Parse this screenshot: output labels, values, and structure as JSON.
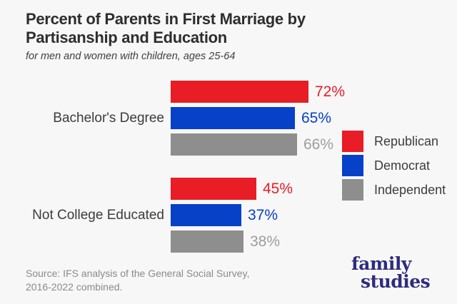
{
  "header": {
    "title_line1": "Percent of Parents in First Marriage by",
    "title_line2": "Partisanship and Education",
    "subtitle": "for men and women with children, ages 25-64"
  },
  "chart_data": {
    "type": "bar",
    "orientation": "horizontal",
    "title": "Percent of Parents in First Marriage by Partisanship and Education",
    "subtitle": "for men and women with children, ages 25-64",
    "categories": [
      "Bachelor's Degree",
      "Not College Educated"
    ],
    "series": [
      {
        "name": "Republican",
        "color": "#e81d25",
        "label_color": "#e81d25",
        "values": [
          72,
          45
        ],
        "labels": [
          "72%",
          "45%"
        ]
      },
      {
        "name": "Democrat",
        "color": "#0641c8",
        "label_color": "#0641c8",
        "values": [
          65,
          37
        ],
        "labels": [
          "65%",
          "37%"
        ]
      },
      {
        "name": "Independent",
        "color": "#8e8e8e",
        "label_color": "#9e9e9e",
        "values": [
          66,
          38
        ],
        "labels": [
          "66%",
          "38%"
        ]
      }
    ],
    "xlim": [
      0,
      100
    ],
    "value_suffix": "%",
    "grid": false,
    "legend_position": "right",
    "data_labels": true
  },
  "legend": {
    "items": [
      {
        "label": "Republican",
        "color": "#e81d25"
      },
      {
        "label": "Democrat",
        "color": "#0641c8"
      },
      {
        "label": "Independent",
        "color": "#8e8e8e"
      }
    ]
  },
  "footer": {
    "source_line1": "Source: IFS analysis of the General Social Survey,",
    "source_line2": "2016-2022 combined.",
    "logo_line1": "family",
    "logo_line2": "studies"
  },
  "colors": {
    "background": "#f7f7f7",
    "republican": "#e81d25",
    "democrat": "#0641c8",
    "independent": "#8e8e8e",
    "logo": "#2e2c7e"
  }
}
